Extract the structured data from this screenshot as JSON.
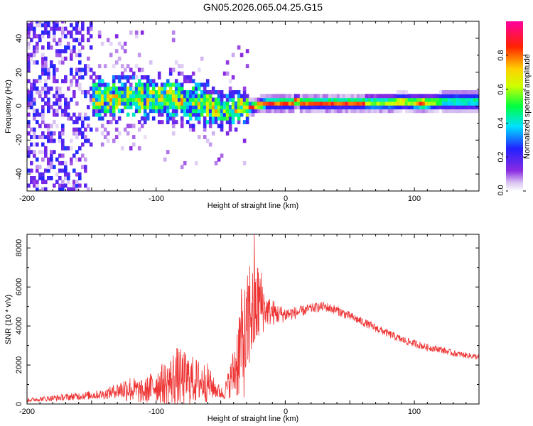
{
  "figure_title": "GN05.2026.065.04.25.G15",
  "colors": {
    "snr_line": "#ee3333",
    "axes": "#000000",
    "background": "#ffffff"
  },
  "chart_data": [
    {
      "type": "heatmap",
      "title": "GN05.2026.065.04.25.G15",
      "xlabel": "Height of straight line (km)",
      "ylabel": "Frequency (Hz)",
      "xlim": [
        -200,
        150
      ],
      "ylim": [
        -50,
        50
      ],
      "xticks": [
        -200,
        -100,
        0,
        100
      ],
      "xtick_labels": [
        "-200",
        "-100",
        "0",
        "100"
      ],
      "yticks": [
        -40,
        -20,
        0,
        20,
        40
      ],
      "ytick_labels": [
        "-40",
        "-20",
        "0",
        "20",
        "40"
      ],
      "colorbar": {
        "label": "Normalized spectral amplitude",
        "range": [
          0,
          1
        ],
        "ticks": [
          0.0,
          0.2,
          0.4,
          0.6,
          0.8
        ],
        "tick_labels": [
          "0.0",
          "0.2",
          "0.4",
          "0.6",
          "0.8"
        ],
        "colormap": "rainbow (white-violet-blue-cyan-green-yellow-red-magenta)"
      },
      "ridge_frequency_hz": [
        [
          -150,
          4
        ],
        [
          -130,
          4
        ],
        [
          -110,
          4
        ],
        [
          -90,
          4
        ],
        [
          -70,
          1
        ],
        [
          -55,
          -2
        ],
        [
          -45,
          -4
        ],
        [
          -35,
          -1
        ],
        [
          -30,
          -2
        ],
        [
          -25,
          -1
        ],
        [
          -20,
          0
        ],
        [
          -15,
          1
        ],
        [
          -5,
          1
        ],
        [
          5,
          1
        ],
        [
          8,
          3
        ],
        [
          10,
          1
        ],
        [
          30,
          1
        ],
        [
          60,
          1
        ],
        [
          80,
          1
        ],
        [
          90,
          2
        ],
        [
          100,
          1
        ],
        [
          110,
          1
        ],
        [
          120,
          2
        ],
        [
          150,
          2
        ]
      ]
    },
    {
      "type": "line",
      "xlabel": "Height of straight line (km)",
      "ylabel": "SNR (10 * v/v)",
      "xlim": [
        -200,
        150
      ],
      "ylim": [
        0,
        8700
      ],
      "xticks": [
        -200,
        -100,
        0,
        100
      ],
      "xtick_labels": [
        "-200",
        "-100",
        "0",
        "100"
      ],
      "yticks": [
        0,
        2000,
        4000,
        6000,
        8000
      ],
      "ytick_labels": [
        "0",
        "2000",
        "4000",
        "6000",
        "8000"
      ],
      "series": [
        {
          "name": "SNR",
          "envelope_x": [
            -200,
            -180,
            -160,
            -140,
            -130,
            -122,
            -110,
            -100,
            -90,
            -85,
            -80,
            -70,
            -60,
            -55,
            -48,
            -45,
            -42,
            -38,
            -35,
            -30,
            -27,
            -25,
            -20,
            -15,
            -10,
            -5,
            0,
            10,
            20,
            30,
            40,
            50,
            60,
            70,
            80,
            90,
            100,
            110,
            120,
            130,
            140,
            150
          ],
          "envelope_mean": [
            200,
            300,
            400,
            500,
            700,
            800,
            600,
            1000,
            1100,
            1400,
            1300,
            1200,
            1100,
            800,
            500,
            900,
            1300,
            2000,
            3000,
            3300,
            5000,
            4500,
            5300,
            4800,
            4700,
            4600,
            4600,
            4700,
            4900,
            5000,
            4800,
            4500,
            4200,
            3900,
            3600,
            3300,
            3100,
            2900,
            2800,
            2600,
            2500,
            2400
          ],
          "envelope_amplitude": [
            100,
            150,
            200,
            250,
            400,
            700,
            600,
            900,
            1200,
            1600,
            1500,
            1200,
            1000,
            500,
            300,
            600,
            1000,
            1800,
            2800,
            3000,
            3000,
            2500,
            2200,
            800,
            700,
            500,
            400,
            300,
            250,
            250,
            250,
            230,
            220,
            210,
            200,
            200,
            190,
            180,
            170,
            160,
            150,
            150
          ],
          "peak_value": 8700,
          "peak_x": -24
        }
      ]
    }
  ]
}
